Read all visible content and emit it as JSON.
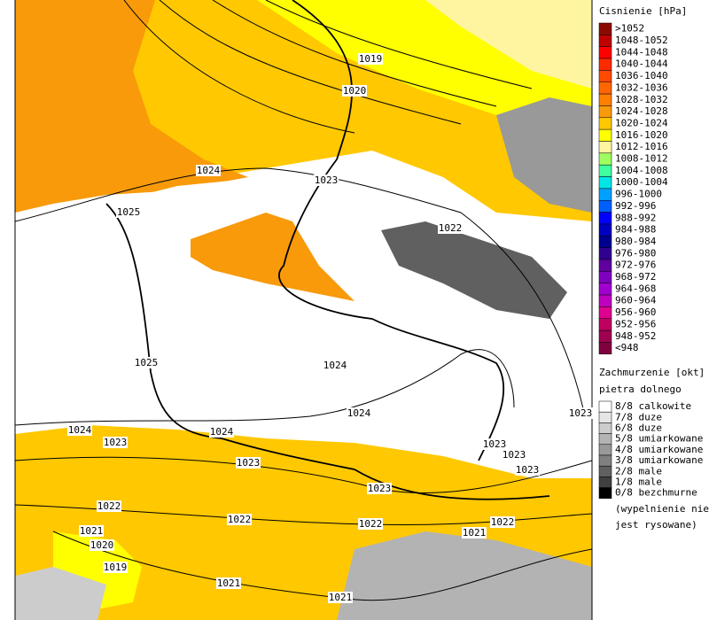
{
  "legend": {
    "pressure": {
      "title": "Cisnienie [hPa]",
      "items": [
        {
          "label": ">1052",
          "color": "#8b0a00"
        },
        {
          "label": "1048-1052",
          "color": "#c00000"
        },
        {
          "label": "1044-1048",
          "color": "#ff0000"
        },
        {
          "label": "1040-1044",
          "color": "#ff2a00"
        },
        {
          "label": "1036-1040",
          "color": "#ff4a00"
        },
        {
          "label": "1032-1036",
          "color": "#ff6600"
        },
        {
          "label": "1028-1032",
          "color": "#ff8000"
        },
        {
          "label": "1024-1028",
          "color": "#f89a0a"
        },
        {
          "label": "1020-1024",
          "color": "#ffc800"
        },
        {
          "label": "1016-1020",
          "color": "#ffff00"
        },
        {
          "label": "1012-1016",
          "color": "#fff5a0"
        },
        {
          "label": "1008-1012",
          "color": "#a0ff60"
        },
        {
          "label": "1004-1008",
          "color": "#40ffa0"
        },
        {
          "label": "1000-1004",
          "color": "#00e6e6"
        },
        {
          "label": "996-1000",
          "color": "#00a0ff"
        },
        {
          "label": "992-996",
          "color": "#0060ff"
        },
        {
          "label": "988-992",
          "color": "#0000ff"
        },
        {
          "label": "984-988",
          "color": "#0000c0"
        },
        {
          "label": "980-984",
          "color": "#000090"
        },
        {
          "label": "976-980",
          "color": "#300090"
        },
        {
          "label": "972-976",
          "color": "#6000a0"
        },
        {
          "label": "968-972",
          "color": "#8000c0"
        },
        {
          "label": "964-968",
          "color": "#a000d0"
        },
        {
          "label": "960-964",
          "color": "#c000c0"
        },
        {
          "label": "956-960",
          "color": "#e00090"
        },
        {
          "label": "952-956",
          "color": "#c00060"
        },
        {
          "label": "948-952",
          "color": "#a00050"
        },
        {
          "label": "<948",
          "color": "#800040"
        }
      ]
    },
    "clouds": {
      "title": "Zachmurzenie [okt]",
      "subtitle": "pietra dolnego",
      "items": [
        {
          "label": "8/8 calkowite",
          "color": "#ffffff"
        },
        {
          "label": "7/8 duze",
          "color": "#e6e6e6"
        },
        {
          "label": "6/8 duze",
          "color": "#cccccc"
        },
        {
          "label": "5/8 umiarkowane",
          "color": "#b3b3b3"
        },
        {
          "label": "4/8 umiarkowane",
          "color": "#999999"
        },
        {
          "label": "3/8 umiarkowane",
          "color": "#808080"
        },
        {
          "label": "2/8 male",
          "color": "#606060"
        },
        {
          "label": "1/8 male",
          "color": "#404040"
        },
        {
          "label": "0/8 bezchmurne",
          "color": "#000000"
        }
      ],
      "note": [
        "(wypelnienie nie",
        "jest rysowane)"
      ]
    }
  },
  "isobar_labels": [
    "1019",
    "1020",
    "1024",
    "1023",
    "1025",
    "1022",
    "1025",
    "1024",
    "1024",
    "1023",
    "1024",
    "1023",
    "1024",
    "1023",
    "1023",
    "1023",
    "1023",
    "1023",
    "1022",
    "1022",
    "1022",
    "1022",
    "1021",
    "1020",
    "1021",
    "1019",
    "1021",
    "1021"
  ]
}
